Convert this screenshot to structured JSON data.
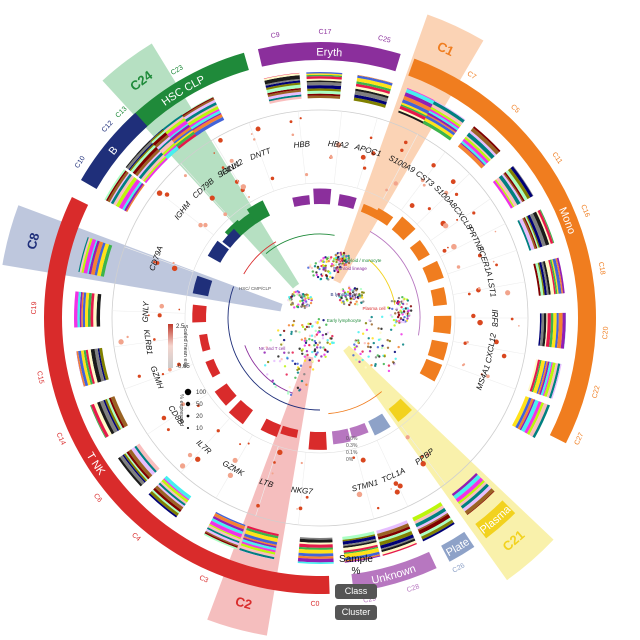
{
  "colors": {
    "hsc": "#1f8a3a",
    "eryth": "#8b2f9c",
    "mono": "#f07d1f",
    "plate": "#8ea2c8",
    "plasma": "#f2d21e",
    "unknown": "#b777c0",
    "tnk": "#d92b2b",
    "b": "#1f2f7a"
  },
  "classes": [
    {
      "label": "HSC_CLP",
      "start": -46,
      "end": -16,
      "color": "#1f8a3a"
    },
    {
      "label": "Eryth",
      "start": -13,
      "end": 17,
      "color": "#8b2f9c"
    },
    {
      "label": "Mono",
      "start": 20,
      "end": 117,
      "color": "#f07d1f"
    },
    {
      "label": "Plasma",
      "start": 135,
      "end": 143,
      "color": "#f2d21e"
    },
    {
      "label": "Plate",
      "start": 146,
      "end": 152,
      "color": "#8ea2c8"
    },
    {
      "label": "Unknown",
      "start": 155,
      "end": 173,
      "color": "#b777c0"
    },
    {
      "label": "T_NK",
      "start": 178,
      "end": 296,
      "color": "#d92b2b"
    },
    {
      "label": "B",
      "start": 300,
      "end": 318,
      "color": "#1f2f7a"
    }
  ],
  "clusters": [
    {
      "label": "C24",
      "angle": -37,
      "color": "#1f8a3a"
    },
    {
      "label": "C23",
      "angle": -30,
      "color": "#1f8a3a"
    },
    {
      "label": "C13",
      "angle": -44,
      "color": "#1f8a3a"
    },
    {
      "label": "C9",
      "angle": -9,
      "color": "#8b2f9c"
    },
    {
      "label": "C17",
      "angle": 1,
      "color": "#8b2f9c"
    },
    {
      "label": "C25",
      "angle": 13,
      "color": "#8b2f9c"
    },
    {
      "label": "C1",
      "angle": 25,
      "color": "#f07d1f"
    },
    {
      "label": "C7",
      "angle": 32,
      "color": "#f07d1f"
    },
    {
      "label": "C5",
      "angle": 43,
      "color": "#f07d1f"
    },
    {
      "label": "C11",
      "angle": 56,
      "color": "#f07d1f"
    },
    {
      "label": "C16",
      "angle": 68,
      "color": "#f07d1f"
    },
    {
      "label": "C18",
      "angle": 80,
      "color": "#f07d1f"
    },
    {
      "label": "C20",
      "angle": 93,
      "color": "#f07d1f"
    },
    {
      "label": "C22",
      "angle": 105,
      "color": "#f07d1f"
    },
    {
      "label": "C27",
      "angle": 115,
      "color": "#f07d1f"
    },
    {
      "label": "C21",
      "angle": 139,
      "color": "#f2d21e"
    },
    {
      "label": "C26",
      "angle": 151,
      "color": "#8ea2c8"
    },
    {
      "label": "C28",
      "angle": 161,
      "color": "#b777c0"
    },
    {
      "label": "C29",
      "angle": 170,
      "color": "#b777c0"
    },
    {
      "label": "C0",
      "angle": 181,
      "color": "#d92b2b"
    },
    {
      "label": "C2",
      "angle": 195,
      "color": "#d92b2b"
    },
    {
      "label": "C3",
      "angle": 204,
      "color": "#d92b2b"
    },
    {
      "label": "C4",
      "angle": 220,
      "color": "#d92b2b"
    },
    {
      "label": "C6",
      "angle": 231,
      "color": "#d92b2b"
    },
    {
      "label": "C14",
      "angle": 245,
      "color": "#d92b2b"
    },
    {
      "label": "C15",
      "angle": 258,
      "color": "#d92b2b"
    },
    {
      "label": "C19",
      "angle": 272,
      "color": "#d92b2b"
    },
    {
      "label": "C8",
      "angle": 285,
      "color": "#1f2f7a"
    },
    {
      "label": "C10",
      "angle": 303,
      "color": "#1f2f7a"
    },
    {
      "label": "C12",
      "angle": 312,
      "color": "#1f2f7a"
    }
  ],
  "highlights": [
    {
      "label": "C24",
      "angle": -37,
      "color": "#9ed6ad"
    },
    {
      "label": "C1",
      "angle": 25,
      "color": "#f9c49c"
    },
    {
      "label": "C21",
      "angle": 139,
      "color": "#f7ec8f"
    },
    {
      "label": "C2",
      "angle": 195,
      "color": "#f2a8a8"
    },
    {
      "label": "C8",
      "angle": 285,
      "color": "#a8b4d2"
    }
  ],
  "genes": [
    {
      "label": "IGLL1",
      "angle": -31
    },
    {
      "label": "HBB",
      "angle": -6
    },
    {
      "label": "HBA2",
      "angle": 6
    },
    {
      "label": "APOC1",
      "angle": 16
    },
    {
      "label": "S100A9",
      "angle": 28
    },
    {
      "label": "CST3",
      "angle": 37
    },
    {
      "label": "S100A8",
      "angle": 46
    },
    {
      "label": "CXCL8",
      "angle": 55
    },
    {
      "label": "PRTN3",
      "angle": 63
    },
    {
      "label": "FCER1A",
      "angle": 71
    },
    {
      "label": "LST1",
      "angle": 80
    },
    {
      "label": "IRF8",
      "angle": 90
    },
    {
      "label": "CXCL12",
      "angle": 100
    },
    {
      "label": "MS4A1",
      "angle": 110
    },
    {
      "label": "PPBP",
      "angle": 143
    },
    {
      "label": "TCL1A",
      "angle": 155
    },
    {
      "label": "STMN1",
      "angle": 165
    },
    {
      "label": "NKG7",
      "angle": 186
    },
    {
      "label": "LTB",
      "angle": 198
    },
    {
      "label": "GZMK",
      "angle": 210
    },
    {
      "label": "IL7R",
      "angle": 222
    },
    {
      "label": "CD8B",
      "angle": 236
    },
    {
      "label": "GZMH",
      "angle": 250
    },
    {
      "label": "KLRB1",
      "angle": 262
    },
    {
      "label": "GNLY",
      "angle": 272
    },
    {
      "label": "CD79A",
      "angle": 290
    },
    {
      "label": "IGHM",
      "angle": 308
    },
    {
      "label": "CD79B",
      "angle": 318
    },
    {
      "label": "SPINK2",
      "angle": 329
    },
    {
      "label": "DNTT",
      "angle": 340
    }
  ],
  "legend": {
    "scale_title": "Scaled mean exp",
    "scale_max": "2.5",
    "scale_min": "-0.65",
    "size_title": "% expressed",
    "size_values": [
      "100",
      "50",
      "20",
      "10"
    ]
  },
  "umap_labels": {
    "early_lympho": "Early lymphocyte",
    "hsc": "HSC/ CMP/CLP",
    "b": "B lymphocyte",
    "plasma": "Plasma cell",
    "nk": "NK and T cell",
    "myeloid": "Myeloid / monocyte",
    "eryth": "Erythroid lineage"
  },
  "sample_pct": [
    "0.6%",
    "0.3%",
    "0.1%",
    "0%"
  ],
  "bottom": {
    "sample_label": "Sample\n%",
    "class_button": "Class",
    "cluster_button": "Cluster"
  }
}
